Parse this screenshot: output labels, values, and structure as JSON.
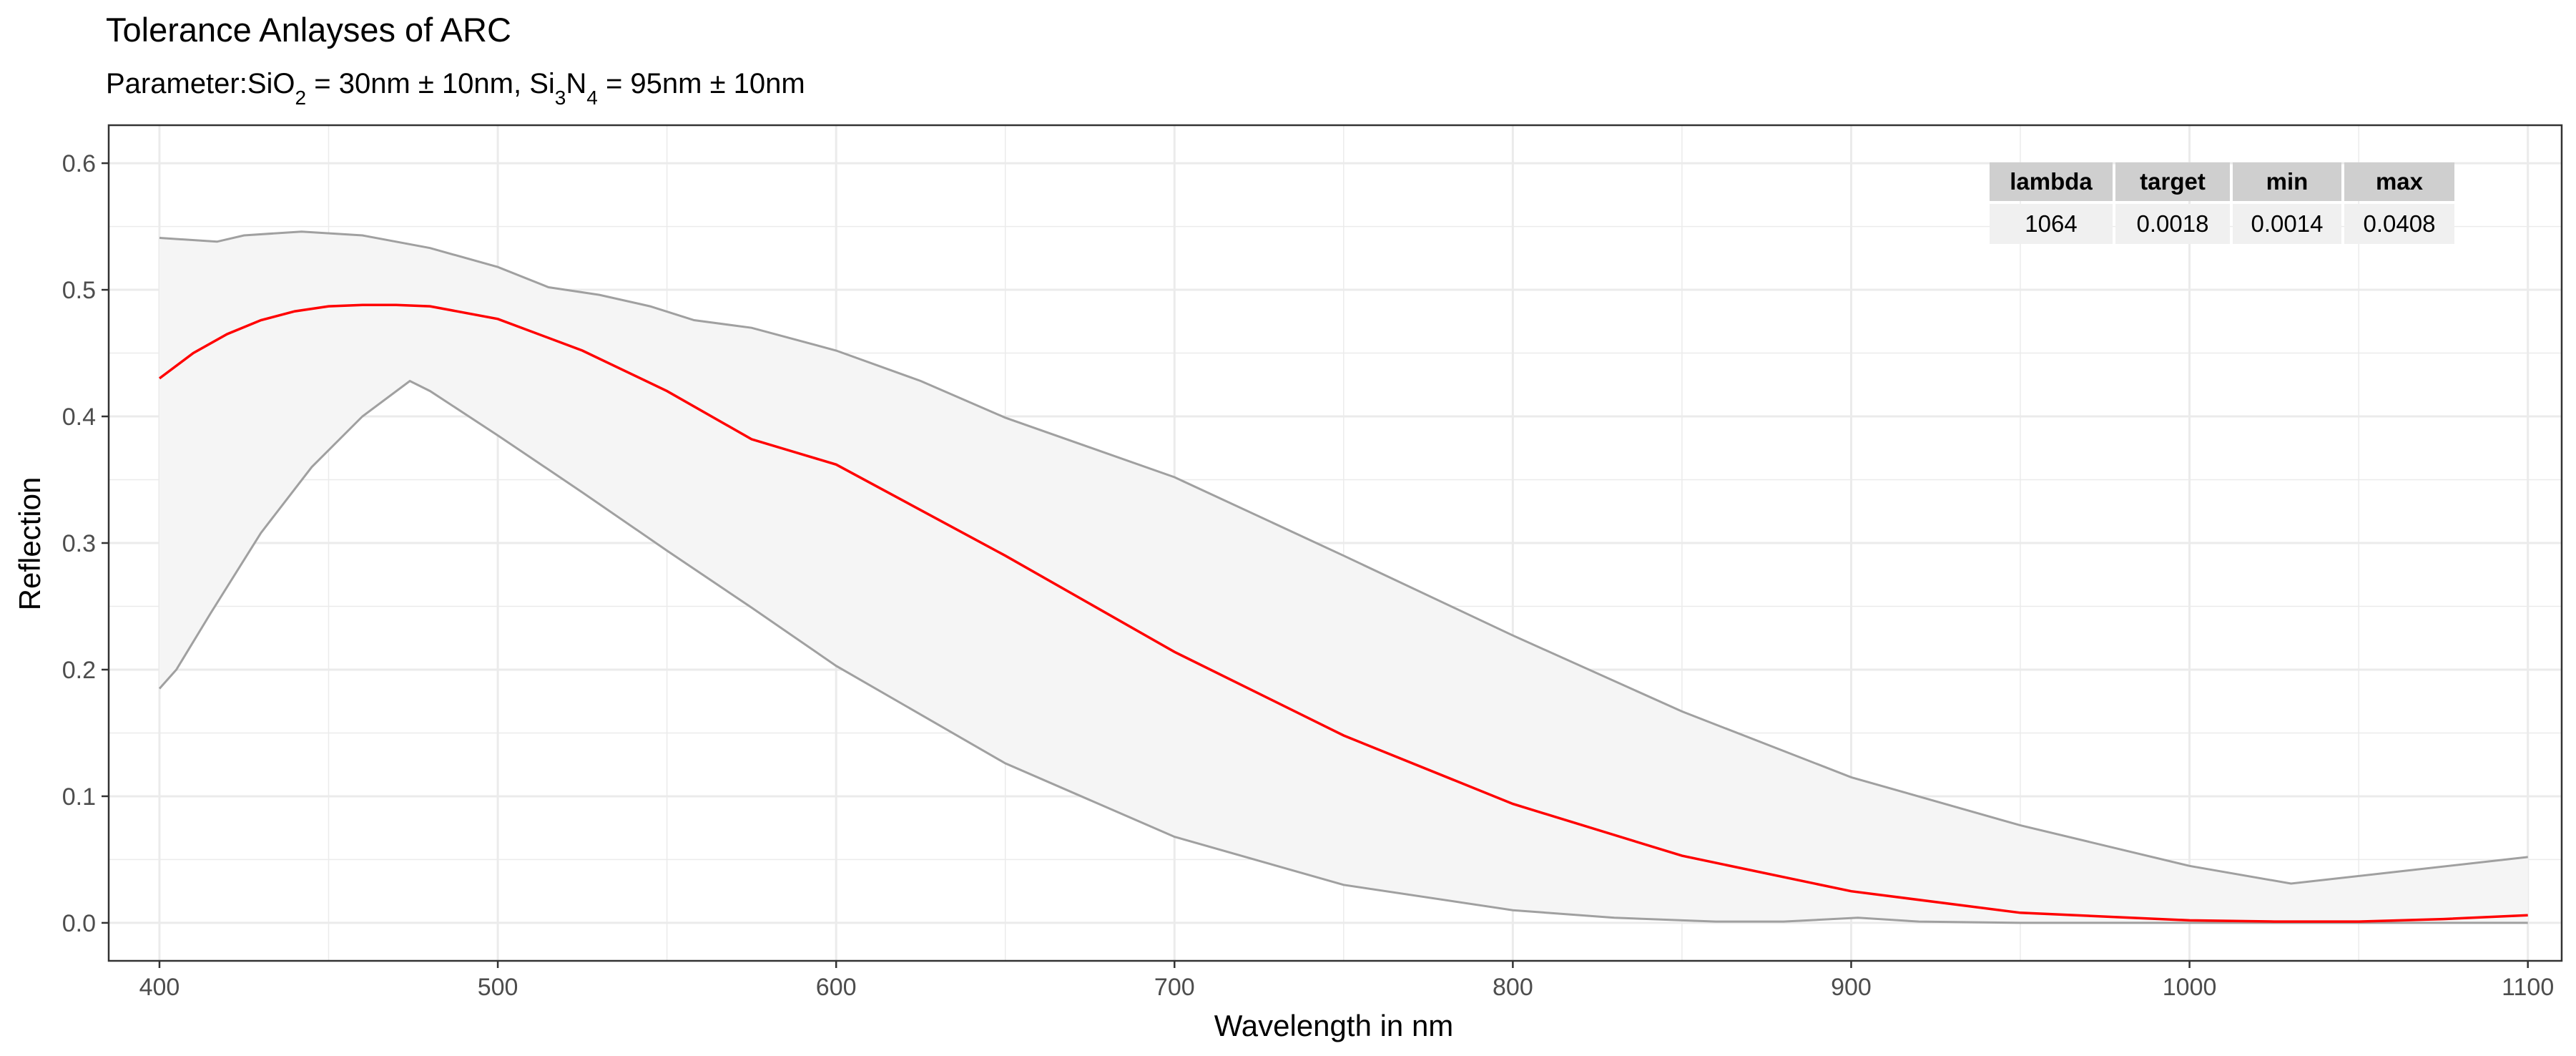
{
  "chart_data": {
    "type": "line",
    "title": "Tolerance Anlayses of ARC",
    "subtitle": {
      "prefix": "Parameter:SiO",
      "sub1": "2",
      "mid1": " = 30nm ± 10nm, Si",
      "sub2": "3",
      "mid2": "N",
      "sub3": "4",
      "suffix": " = 95nm ± 10nm"
    },
    "xlabel": "Wavelength in nm",
    "ylabel": "Reflection",
    "xlim": [
      385,
      1110
    ],
    "ylim": [
      -0.03,
      0.63
    ],
    "xticks": [
      400,
      500,
      600,
      700,
      800,
      900,
      1000,
      1100
    ],
    "xtick_labels": [
      "400",
      "500",
      "600",
      "700",
      "800",
      "900",
      "1000",
      "1100"
    ],
    "yticks": [
      0.0,
      0.1,
      0.2,
      0.3,
      0.4,
      0.5,
      0.6
    ],
    "ytick_labels": [
      "0.0",
      "0.1",
      "0.2",
      "0.3",
      "0.4",
      "0.5",
      "0.6"
    ],
    "grid": true,
    "colors": {
      "target": "#ff0000",
      "bounds": "#a0a0a0",
      "band_fill": "#f5f5f5",
      "grid": "#ebebeb",
      "table_header_bg": "#cfcfcf",
      "table_cell_bg": "#f0f0f0"
    },
    "series": [
      {
        "role": "upper",
        "x": [
          400,
          417,
          425,
          442,
          460,
          480,
          500,
          515,
          530,
          545,
          558,
          575,
          600,
          625,
          650,
          700,
          750,
          800,
          850,
          900,
          950,
          1000,
          1030,
          1060,
          1100
        ],
        "y": [
          0.541,
          0.538,
          0.543,
          0.546,
          0.543,
          0.533,
          0.518,
          0.502,
          0.496,
          0.487,
          0.476,
          0.47,
          0.452,
          0.428,
          0.399,
          0.352,
          0.29,
          0.227,
          0.167,
          0.115,
          0.077,
          0.045,
          0.031,
          0.04,
          0.052
        ]
      },
      {
        "role": "target",
        "x": [
          400,
          410,
          420,
          430,
          440,
          450,
          460,
          470,
          480,
          500,
          525,
          550,
          575,
          600,
          650,
          700,
          750,
          800,
          850,
          900,
          950,
          1000,
          1025,
          1050,
          1075,
          1100
        ],
        "y": [
          0.43,
          0.45,
          0.465,
          0.476,
          0.483,
          0.487,
          0.488,
          0.488,
          0.487,
          0.477,
          0.452,
          0.42,
          0.382,
          0.362,
          0.29,
          0.214,
          0.148,
          0.094,
          0.053,
          0.025,
          0.008,
          0.002,
          0.001,
          0.001,
          0.003,
          0.006
        ]
      },
      {
        "role": "lower",
        "x": [
          400,
          405,
          415,
          430,
          445,
          460,
          474,
          480,
          500,
          525,
          550,
          575,
          600,
          650,
          700,
          750,
          800,
          830,
          860,
          880,
          902,
          920,
          950,
          1000,
          1050,
          1100
        ],
        "y": [
          0.185,
          0.2,
          0.244,
          0.308,
          0.36,
          0.4,
          0.428,
          0.42,
          0.385,
          0.34,
          0.294,
          0.249,
          0.203,
          0.126,
          0.068,
          0.03,
          0.01,
          0.004,
          0.001,
          0.001,
          0.004,
          0.001,
          0.0,
          0.0,
          0.0,
          0.0
        ]
      }
    ],
    "table": {
      "headers": [
        "lambda",
        "target",
        "min",
        "max"
      ],
      "rows": [
        [
          "1064",
          "0.0018",
          "0.0014",
          "0.0408"
        ]
      ]
    }
  }
}
